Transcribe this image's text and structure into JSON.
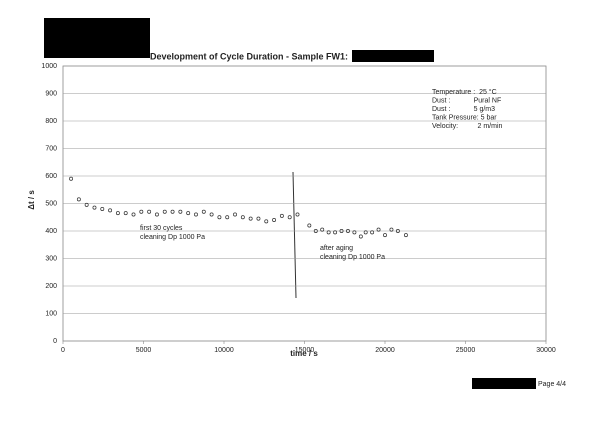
{
  "chart_data": {
    "type": "scatter",
    "title": "Development of Cycle Duration - Sample FW1:",
    "x_label": "time / s",
    "y_label": "Δt / s",
    "x": [
      500,
      985,
      1470,
      1955,
      2440,
      2925,
      3410,
      3895,
      4380,
      4865,
      5350,
      5835,
      6320,
      6805,
      7290,
      7775,
      8260,
      8745,
      9230,
      9715,
      10200,
      10685,
      11170,
      11655,
      12140,
      12625,
      13110,
      13595,
      14080,
      14565,
      15300,
      15700,
      16100,
      16500,
      16900,
      17300,
      17700,
      18100,
      18500,
      18800,
      19200,
      19600,
      20000,
      20400,
      20800,
      21300
    ],
    "values": [
      590,
      515,
      495,
      485,
      480,
      475,
      465,
      465,
      460,
      470,
      470,
      460,
      470,
      470,
      470,
      465,
      460,
      470,
      460,
      450,
      450,
      460,
      450,
      445,
      445,
      435,
      440,
      455,
      450,
      460,
      420,
      400,
      405,
      395,
      395,
      400,
      400,
      395,
      380,
      395,
      395,
      405,
      385,
      405,
      400,
      385
    ],
    "color": "#333333",
    "xlim": [
      0,
      30000
    ],
    "xticks": [
      0,
      5000,
      10000,
      15000,
      20000,
      25000,
      30000
    ],
    "ylim": [
      0,
      1000
    ],
    "yticks": [
      0,
      100,
      200,
      300,
      400,
      500,
      600,
      700,
      800,
      900,
      1000
    ],
    "grid": true,
    "parameters": [
      "Temperature :  25 °C",
      "Dust :            Pural NF",
      "Dust :            5 g/m3",
      "Tank Pressure: 5 bar",
      "Velocity:          2 m/min"
    ],
    "annotations": [
      "first 30 cycles",
      "cleaning Dp 1000 Pa",
      "after aging",
      "cleaning Dp 1000 Pa"
    ]
  },
  "footer": "Page 4/4"
}
